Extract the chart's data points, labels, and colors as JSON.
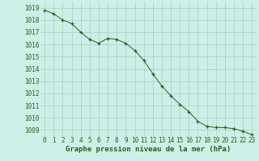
{
  "x": [
    0,
    1,
    2,
    3,
    4,
    5,
    6,
    7,
    8,
    9,
    10,
    11,
    12,
    13,
    14,
    15,
    16,
    17,
    18,
    19,
    20,
    21,
    22,
    23
  ],
  "y": [
    1018.8,
    1018.5,
    1018.0,
    1017.7,
    1017.0,
    1016.4,
    1016.1,
    1016.5,
    1016.4,
    1016.1,
    1015.5,
    1014.7,
    1013.6,
    1012.6,
    1011.8,
    1011.1,
    1010.5,
    1009.7,
    1009.3,
    1009.2,
    1009.2,
    1009.1,
    1008.9,
    1008.6
  ],
  "line_color": "#1f6614",
  "marker_color": "#1f6614",
  "bg_color": "#ceeee8",
  "grid_color": "#a0c8b8",
  "xlabel": "Graphe pression niveau de la mer (hPa)",
  "ylim_min": 1008.5,
  "ylim_max": 1019.5,
  "yticks": [
    1009,
    1010,
    1011,
    1012,
    1013,
    1014,
    1015,
    1016,
    1017,
    1018,
    1019
  ],
  "xtick_labels": [
    "0",
    "1",
    "2",
    "3",
    "4",
    "5",
    "6",
    "7",
    "8",
    "9",
    "10",
    "11",
    "12",
    "13",
    "14",
    "15",
    "16",
    "17",
    "18",
    "19",
    "20",
    "21",
    "22",
    "23"
  ],
  "xlabel_fontsize": 6.5,
  "tick_fontsize": 5.5,
  "tick_color": "#1f6614",
  "xlabel_color": "#1f6614"
}
